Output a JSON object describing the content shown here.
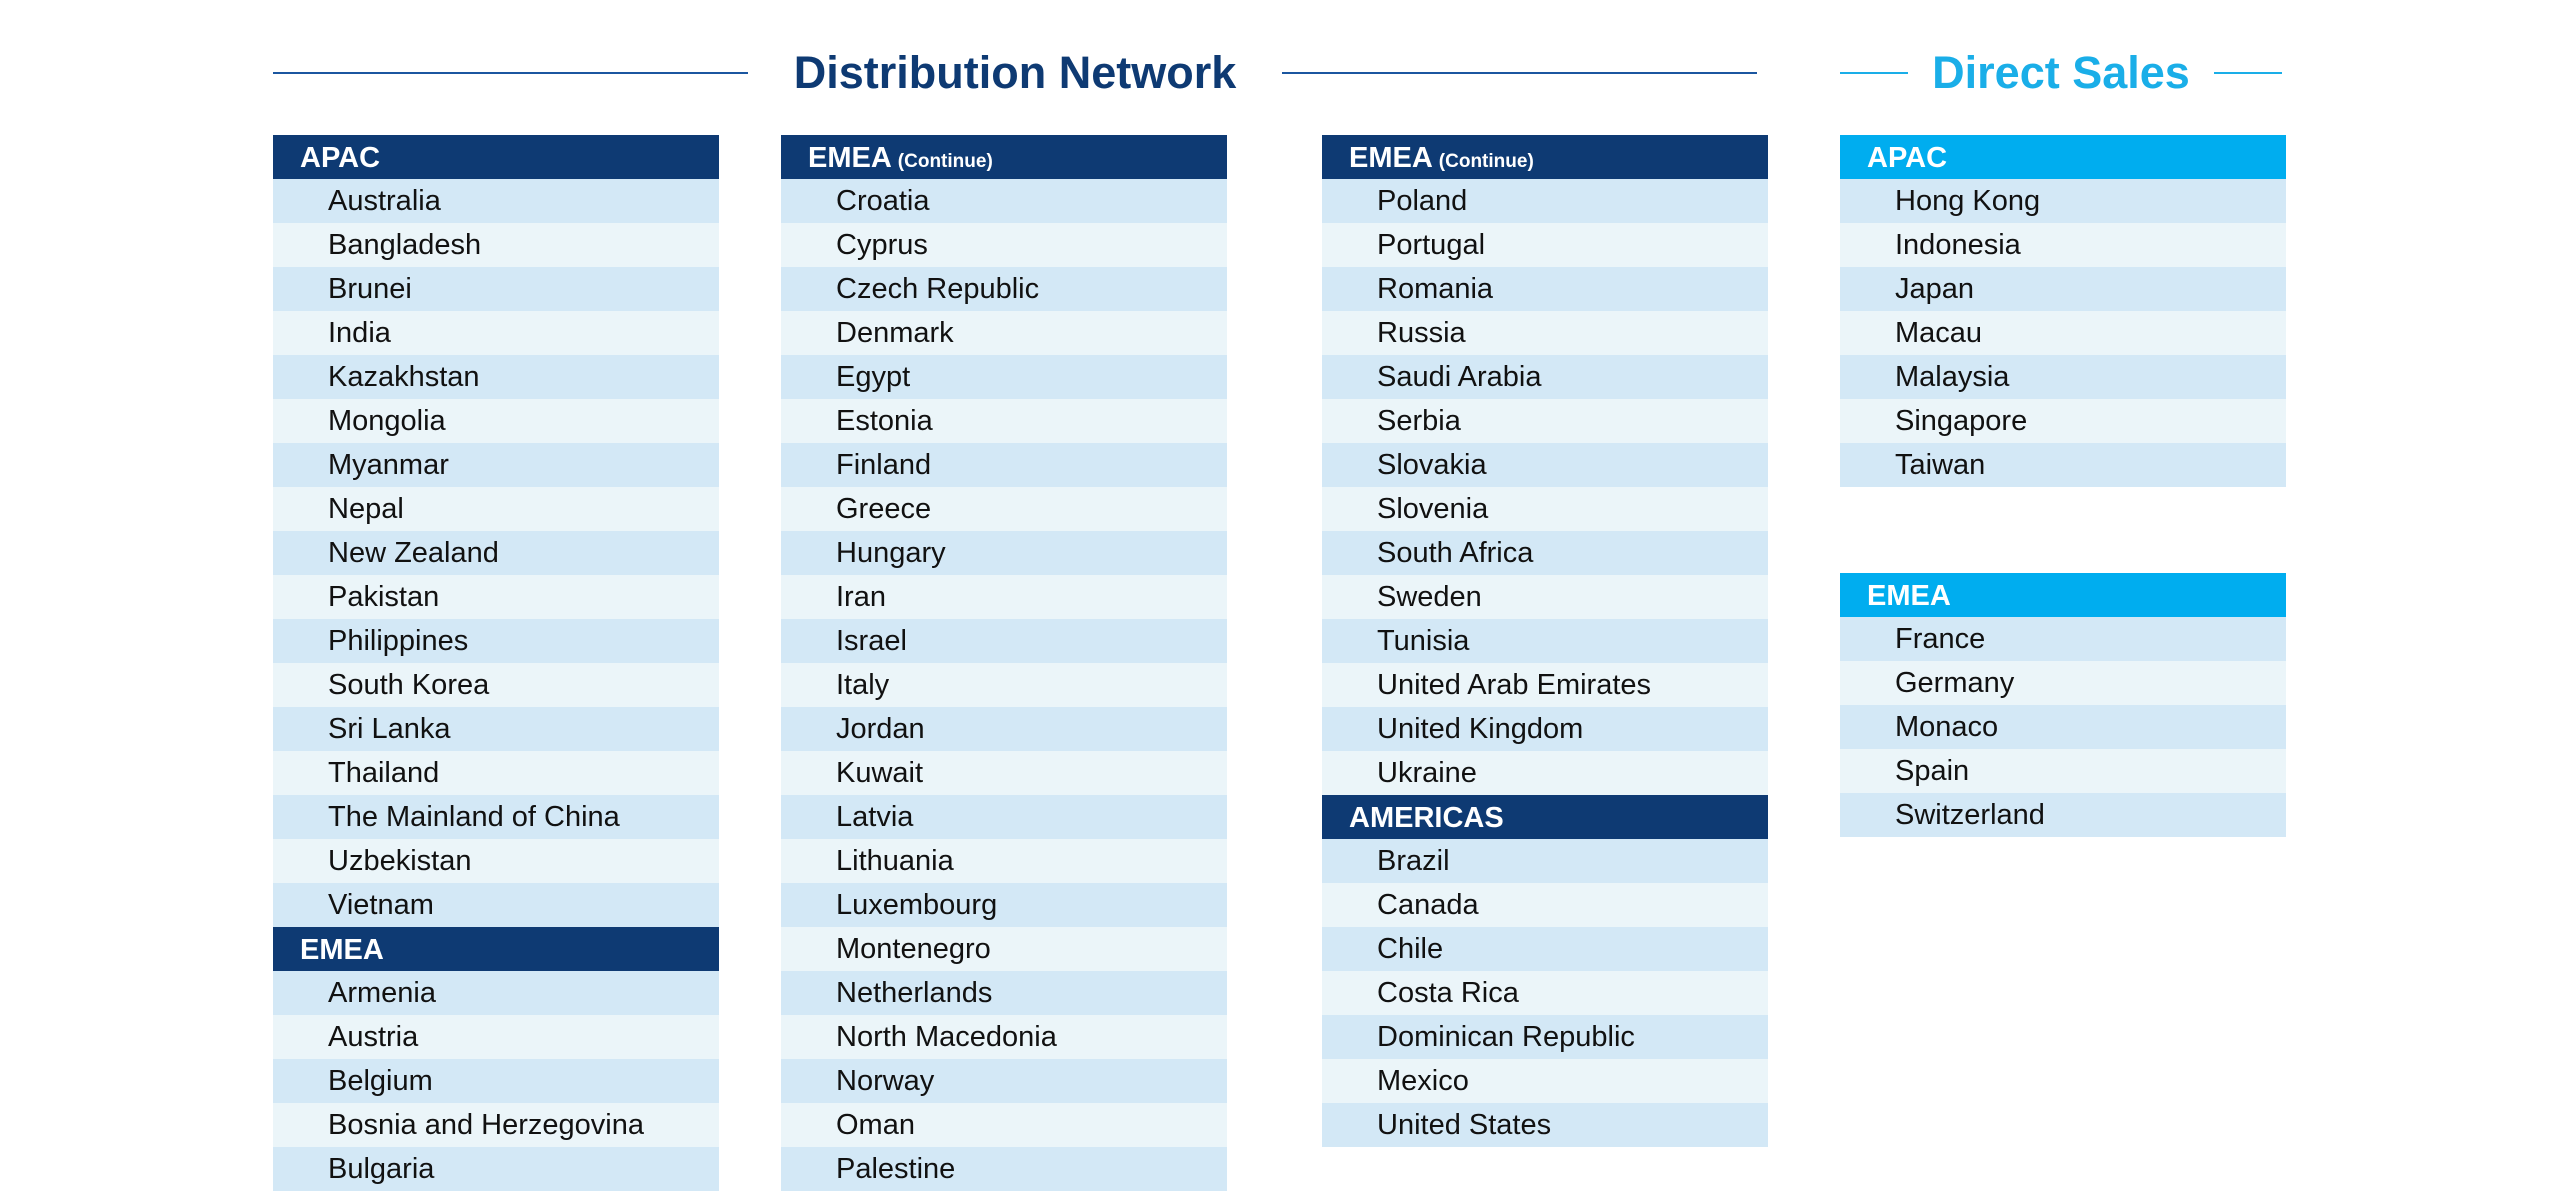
{
  "headings": {
    "distribution": "Distribution Network",
    "direct": "Direct Sales"
  },
  "colors": {
    "distribution_header": "#0e3a73",
    "direct_header": "#00adef",
    "row_a": "#d3e8f6",
    "row_b": "#ebf5f9"
  },
  "distribution": {
    "apac": {
      "title": "APAC",
      "items": [
        "Australia",
        "Bangladesh",
        "Brunei",
        "India",
        "Kazakhstan",
        "Mongolia",
        "Myanmar",
        "Nepal",
        "New Zealand",
        "Pakistan",
        "Philippines",
        "South Korea",
        "Sri Lanka",
        "Thailand",
        "The Mainland of China",
        "Uzbekistan",
        "Vietnam"
      ]
    },
    "emea": {
      "title": "EMEA",
      "items": [
        "Armenia",
        "Austria",
        "Belgium",
        "Bosnia and Herzegovina",
        "Bulgaria"
      ]
    },
    "emea_continue_1": {
      "title": "EMEA",
      "suffix": "(Continue)",
      "items": [
        "Croatia",
        "Cyprus",
        "Czech Republic",
        "Denmark",
        "Egypt",
        "Estonia",
        "Finland",
        "Greece",
        "Hungary",
        "Iran",
        "Israel",
        "Italy",
        "Jordan",
        "Kuwait",
        "Latvia",
        "Lithuania",
        "Luxembourg",
        "Montenegro",
        "Netherlands",
        "North Macedonia",
        "Norway",
        "Oman",
        "Palestine"
      ]
    },
    "emea_continue_2": {
      "title": "EMEA",
      "suffix": "(Continue)",
      "items": [
        "Poland",
        "Portugal",
        "Romania",
        "Russia",
        "Saudi Arabia",
        "Serbia",
        "Slovakia",
        "Slovenia",
        "South Africa",
        "Sweden",
        "Tunisia",
        "United Arab Emirates",
        "United Kingdom",
        "Ukraine"
      ]
    },
    "americas": {
      "title": "AMERICAS",
      "items": [
        "Brazil",
        "Canada",
        "Chile",
        "Costa Rica",
        "Dominican Republic",
        "Mexico",
        "United States"
      ]
    }
  },
  "direct_sales": {
    "apac": {
      "title": "APAC",
      "items": [
        "Hong Kong",
        "Indonesia",
        "Japan",
        "Macau",
        "Malaysia",
        "Singapore",
        "Taiwan"
      ]
    },
    "emea": {
      "title": "EMEA",
      "items": [
        "France",
        "Germany",
        "Monaco",
        "Spain",
        "Switzerland"
      ]
    }
  }
}
